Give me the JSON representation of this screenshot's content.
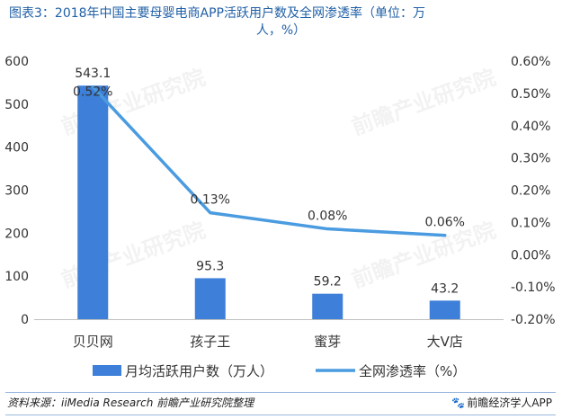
{
  "title": {
    "line1": "图表3：2018年中国主要母婴电商APP活跃用户数及全网渗透率（单位：万",
    "line2": "人，%）"
  },
  "watermark": "前瞻产业研究院",
  "footer": {
    "source": "资料来源：iiMedia Research  前瞻产业研究院整理",
    "brand": "前瞻经济学人APP",
    "brand_icon": "paw-icon"
  },
  "colors": {
    "bar": "#3d7fd9",
    "line": "#4a9be0",
    "axis": "#bfbfbf",
    "text": "#333333",
    "title": "#1f5fa6"
  },
  "chart_data": {
    "type": "bar+line",
    "categories": [
      "贝贝网",
      "孩子王",
      "蜜芽",
      "大V店"
    ],
    "series": [
      {
        "name": "月均活跃用户数（万人）",
        "type": "bar",
        "axis": "left",
        "values": [
          543.1,
          95.3,
          59.2,
          43.2
        ],
        "labels": [
          "543.1",
          "95.3",
          "59.2",
          "43.2"
        ]
      },
      {
        "name": "全网渗透率（%）",
        "type": "line",
        "axis": "right",
        "values": [
          0.52,
          0.13,
          0.08,
          0.06
        ],
        "labels": [
          "0.52%",
          "0.13%",
          "0.08%",
          "0.06%"
        ]
      }
    ],
    "y_left": {
      "range": [
        0,
        600
      ],
      "ticks": [
        0,
        100,
        200,
        300,
        400,
        500,
        600
      ],
      "tick_labels": [
        "0",
        "100",
        "200",
        "300",
        "400",
        "500",
        "600"
      ]
    },
    "y_right": {
      "range": [
        -0.2,
        0.6
      ],
      "ticks": [
        -0.2,
        -0.1,
        0.0,
        0.1,
        0.2,
        0.3,
        0.4,
        0.5,
        0.6
      ],
      "tick_labels": [
        "-0.20%",
        "-0.10%",
        "0.00%",
        "0.10%",
        "0.20%",
        "0.30%",
        "0.40%",
        "0.50%",
        "0.60%"
      ]
    },
    "grid": false,
    "legend_position": "bottom"
  }
}
